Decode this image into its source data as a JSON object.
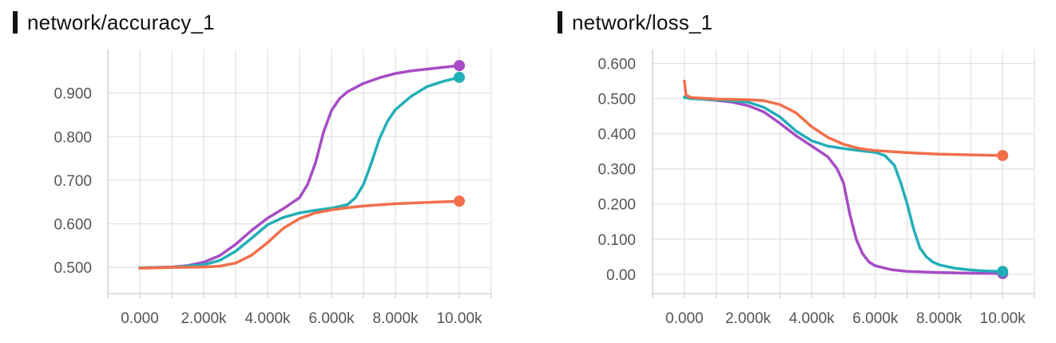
{
  "colors": {
    "purple": "#a64cc4",
    "teal": "#22aeb8",
    "orange": "#f26f4b"
  },
  "charts": [
    {
      "title": "network/accuracy_1",
      "chart_data": {
        "type": "line",
        "title": "network/accuracy_1",
        "xlabel": "",
        "ylabel": "",
        "xlim": [
          -1000,
          11000
        ],
        "ylim": [
          0.44,
          1.0
        ],
        "x_ticks": [
          "0.000",
          "2.000k",
          "4.000k",
          "6.000k",
          "8.000k",
          "10.00k"
        ],
        "y_ticks": [
          "0.500",
          "0.600",
          "0.700",
          "0.800",
          "0.900"
        ],
        "grid": true,
        "series": [
          {
            "color": "#a64cc4",
            "points": [
              [
                0,
                0.499
              ],
              [
                1000,
                0.501
              ],
              [
                1500,
                0.504
              ],
              [
                2000,
                0.512
              ],
              [
                2500,
                0.527
              ],
              [
                3000,
                0.553
              ],
              [
                3500,
                0.585
              ],
              [
                4000,
                0.613
              ],
              [
                4500,
                0.635
              ],
              [
                5000,
                0.66
              ],
              [
                5250,
                0.69
              ],
              [
                5500,
                0.74
              ],
              [
                5750,
                0.81
              ],
              [
                6000,
                0.86
              ],
              [
                6250,
                0.887
              ],
              [
                6500,
                0.903
              ],
              [
                7000,
                0.922
              ],
              [
                7500,
                0.935
              ],
              [
                8000,
                0.945
              ],
              [
                8500,
                0.951
              ],
              [
                9000,
                0.955
              ],
              [
                9500,
                0.959
              ],
              [
                10000,
                0.963
              ]
            ]
          },
          {
            "color": "#22aeb8",
            "points": [
              [
                0,
                0.499
              ],
              [
                1000,
                0.5
              ],
              [
                2000,
                0.506
              ],
              [
                2500,
                0.516
              ],
              [
                3000,
                0.537
              ],
              [
                3500,
                0.567
              ],
              [
                4000,
                0.598
              ],
              [
                4500,
                0.615
              ],
              [
                5000,
                0.625
              ],
              [
                5500,
                0.631
              ],
              [
                6000,
                0.636
              ],
              [
                6500,
                0.644
              ],
              [
                6750,
                0.66
              ],
              [
                7000,
                0.69
              ],
              [
                7250,
                0.74
              ],
              [
                7500,
                0.795
              ],
              [
                7750,
                0.835
              ],
              [
                8000,
                0.862
              ],
              [
                8500,
                0.893
              ],
              [
                9000,
                0.915
              ],
              [
                9500,
                0.927
              ],
              [
                10000,
                0.936
              ]
            ]
          },
          {
            "color": "#f26f4b",
            "points": [
              [
                0,
                0.498
              ],
              [
                1000,
                0.5
              ],
              [
                2000,
                0.501
              ],
              [
                2500,
                0.503
              ],
              [
                3000,
                0.51
              ],
              [
                3500,
                0.528
              ],
              [
                4000,
                0.557
              ],
              [
                4500,
                0.59
              ],
              [
                5000,
                0.612
              ],
              [
                5500,
                0.625
              ],
              [
                6000,
                0.632
              ],
              [
                6500,
                0.637
              ],
              [
                7000,
                0.641
              ],
              [
                8000,
                0.646
              ],
              [
                9000,
                0.649
              ],
              [
                10000,
                0.652
              ]
            ]
          }
        ]
      }
    },
    {
      "title": "network/loss_1",
      "chart_data": {
        "type": "line",
        "title": "network/loss_1",
        "xlabel": "",
        "ylabel": "",
        "xlim": [
          -1000,
          11000
        ],
        "ylim": [
          -0.055,
          0.64
        ],
        "x_ticks": [
          "0.000",
          "2.000k",
          "4.000k",
          "6.000k",
          "8.000k",
          "10.00k"
        ],
        "y_ticks": [
          "0.00",
          "0.100",
          "0.200",
          "0.300",
          "0.400",
          "0.500",
          "0.600"
        ],
        "grid": true,
        "series": [
          {
            "color": "#a64cc4",
            "points": [
              [
                0,
                0.505
              ],
              [
                200,
                0.501
              ],
              [
                1000,
                0.495
              ],
              [
                1500,
                0.49
              ],
              [
                2000,
                0.48
              ],
              [
                2500,
                0.462
              ],
              [
                3000,
                0.43
              ],
              [
                3500,
                0.395
              ],
              [
                4000,
                0.365
              ],
              [
                4500,
                0.335
              ],
              [
                4800,
                0.3
              ],
              [
                5000,
                0.26
              ],
              [
                5200,
                0.17
              ],
              [
                5400,
                0.1
              ],
              [
                5600,
                0.058
              ],
              [
                5800,
                0.035
              ],
              [
                6000,
                0.024
              ],
              [
                6500,
                0.013
              ],
              [
                7000,
                0.008
              ],
              [
                8000,
                0.005
              ],
              [
                9000,
                0.003
              ],
              [
                10000,
                0.002
              ]
            ]
          },
          {
            "color": "#22aeb8",
            "points": [
              [
                0,
                0.503
              ],
              [
                200,
                0.5
              ],
              [
                1000,
                0.497
              ],
              [
                2000,
                0.49
              ],
              [
                2500,
                0.475
              ],
              [
                3000,
                0.448
              ],
              [
                3500,
                0.408
              ],
              [
                4000,
                0.38
              ],
              [
                4500,
                0.365
              ],
              [
                5000,
                0.358
              ],
              [
                5500,
                0.352
              ],
              [
                6000,
                0.347
              ],
              [
                6300,
                0.338
              ],
              [
                6600,
                0.31
              ],
              [
                6800,
                0.26
              ],
              [
                7000,
                0.2
              ],
              [
                7200,
                0.13
              ],
              [
                7400,
                0.075
              ],
              [
                7600,
                0.05
              ],
              [
                7800,
                0.035
              ],
              [
                8000,
                0.027
              ],
              [
                8500,
                0.017
              ],
              [
                9000,
                0.012
              ],
              [
                9500,
                0.009
              ],
              [
                10000,
                0.008
              ]
            ]
          },
          {
            "color": "#f26f4b",
            "points": [
              [
                0,
                0.55
              ],
              [
                50,
                0.51
              ],
              [
                200,
                0.503
              ],
              [
                1000,
                0.499
              ],
              [
                2000,
                0.497
              ],
              [
                2500,
                0.494
              ],
              [
                3000,
                0.483
              ],
              [
                3500,
                0.46
              ],
              [
                4000,
                0.42
              ],
              [
                4500,
                0.39
              ],
              [
                5000,
                0.37
              ],
              [
                5500,
                0.358
              ],
              [
                6000,
                0.352
              ],
              [
                7000,
                0.346
              ],
              [
                8000,
                0.342
              ],
              [
                9000,
                0.34
              ],
              [
                10000,
                0.338
              ]
            ]
          }
        ]
      }
    }
  ]
}
